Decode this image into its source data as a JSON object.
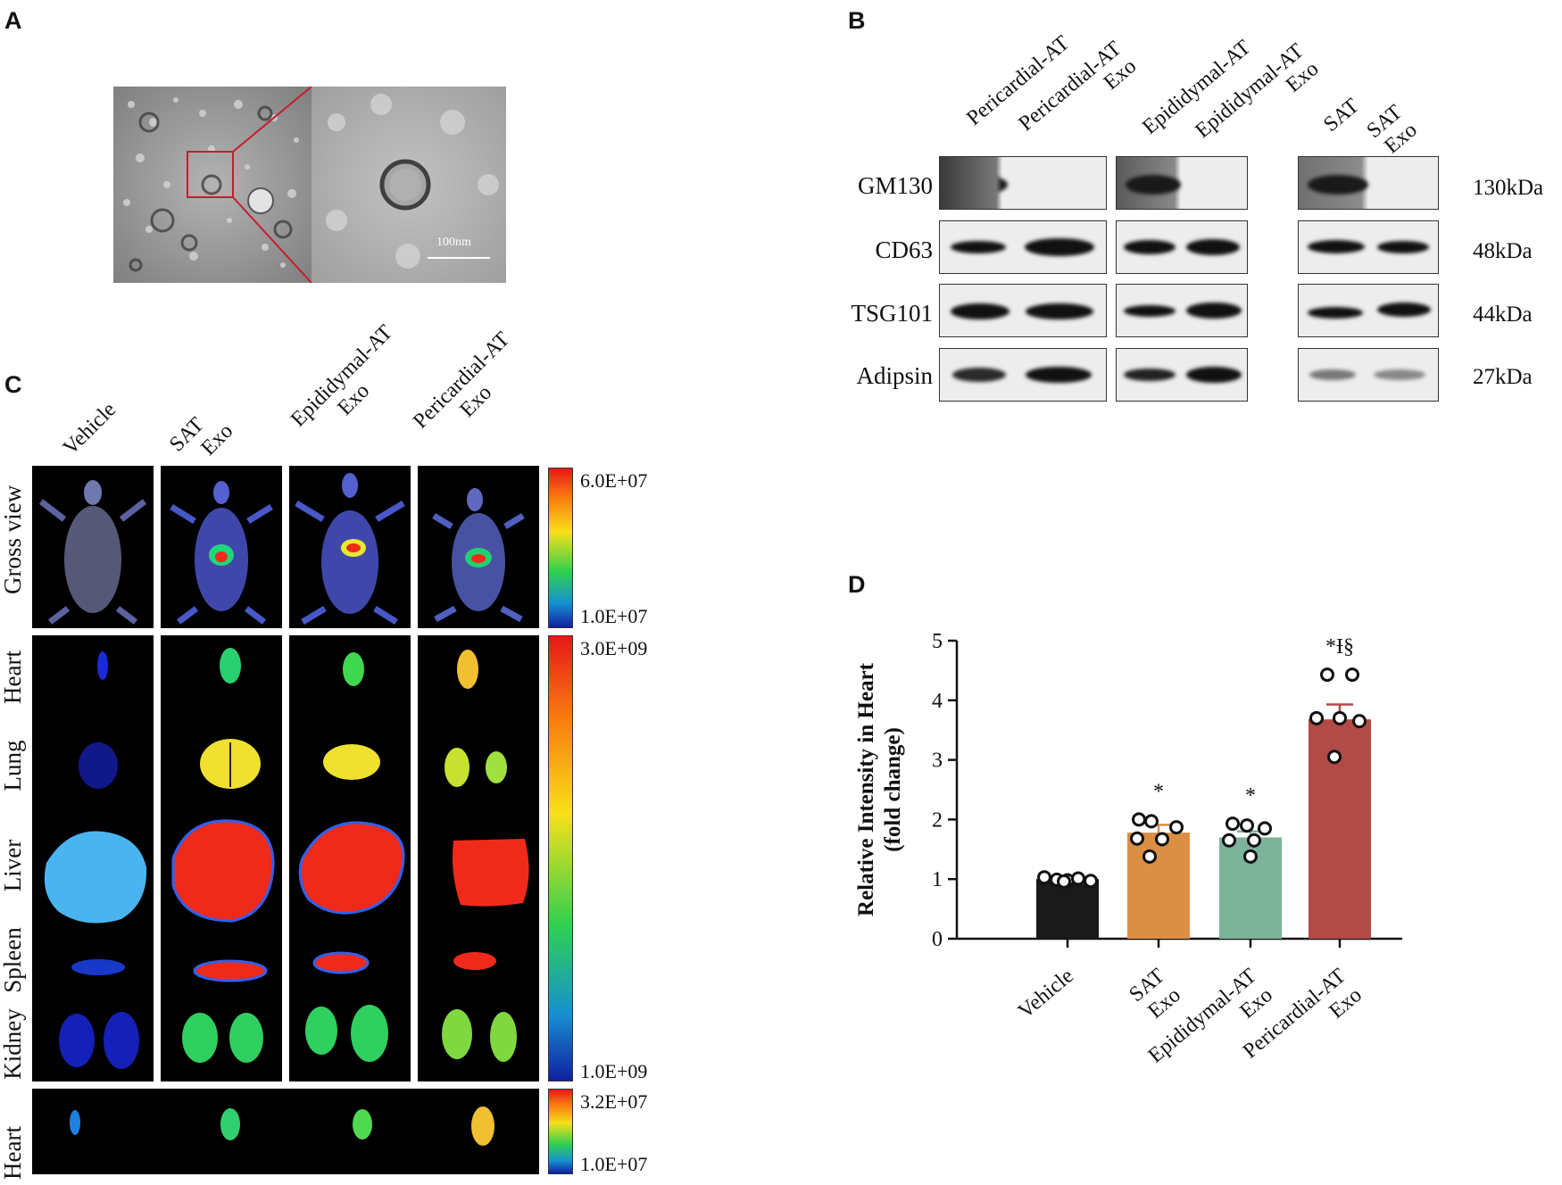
{
  "panels": {
    "a": "A",
    "b": "B",
    "c": "C",
    "d": "D"
  },
  "panelA": {
    "scale_bar": "100nm"
  },
  "panelB": {
    "lane_labels": [
      {
        "line1": "Pericardial-AT",
        "line2": ""
      },
      {
        "line1": "Pericardial-AT",
        "line2": "Exo"
      },
      {
        "line1": "Epididymal-AT",
        "line2": ""
      },
      {
        "line1": "Epididymal-AT",
        "line2": "Exo"
      },
      {
        "line1": "SAT",
        "line2": ""
      },
      {
        "line1": "SAT",
        "line2": "Exo"
      }
    ],
    "rows": [
      {
        "protein": "GM130",
        "size": "130kDa"
      },
      {
        "protein": "CD63",
        "size": "48kDa"
      },
      {
        "protein": "TSG101",
        "size": "44kDa"
      },
      {
        "protein": "Adipsin",
        "size": "27kDa"
      }
    ]
  },
  "panelC": {
    "columns": [
      {
        "line1": "Vehicle",
        "line2": ""
      },
      {
        "line1": "SAT",
        "line2": "Exo"
      },
      {
        "line1": "Epididymal-AT",
        "line2": "Exo"
      },
      {
        "line1": "Pericardial-AT",
        "line2": "Exo"
      }
    ],
    "row_labels": {
      "gross": "Gross view",
      "heart": "Heart",
      "lung": "Lung",
      "liver": "Liver",
      "spleen": "Spleen",
      "kidney": "Kidney",
      "heart2": "Heart"
    },
    "scales": {
      "gross": {
        "max": "6.0E+07",
        "min": "1.0E+07"
      },
      "organs": {
        "max": "3.0E+09",
        "min": "1.0E+09"
      },
      "heart": {
        "max": "3.2E+07",
        "min": "1.0E+07"
      }
    }
  },
  "chart_data": {
    "type": "bar",
    "ylabel_line1": "Relative Intensity in Heart",
    "ylabel_line2": "(fold change)",
    "ylim": [
      0,
      5
    ],
    "yticks": [
      "0",
      "1",
      "2",
      "3",
      "4",
      "5"
    ],
    "categories": [
      {
        "line1": "Vehicle",
        "line2": ""
      },
      {
        "line1": "SAT",
        "line2": "Exo"
      },
      {
        "line1": "Epididymal-AT",
        "line2": "Exo"
      },
      {
        "line1": "Pericardial-AT",
        "line2": "Exo"
      }
    ],
    "values": [
      1.0,
      1.78,
      1.7,
      3.68
    ],
    "errors": [
      0.03,
      0.13,
      0.1,
      0.25
    ],
    "colors": [
      "#1a1a1a",
      "#db8f45",
      "#7db39a",
      "#b24a46"
    ],
    "points": [
      [
        1.03,
        0.99,
        0.98,
        1.01,
        0.97,
        0.96
      ],
      [
        2.0,
        1.97,
        1.87,
        1.68,
        1.67,
        1.38
      ],
      [
        1.93,
        1.9,
        1.85,
        1.65,
        1.65,
        1.38
      ],
      [
        4.43,
        4.43,
        3.7,
        3.7,
        3.65,
        3.05
      ]
    ],
    "significance": [
      "",
      "*",
      "*",
      "*Ɨ§"
    ]
  }
}
